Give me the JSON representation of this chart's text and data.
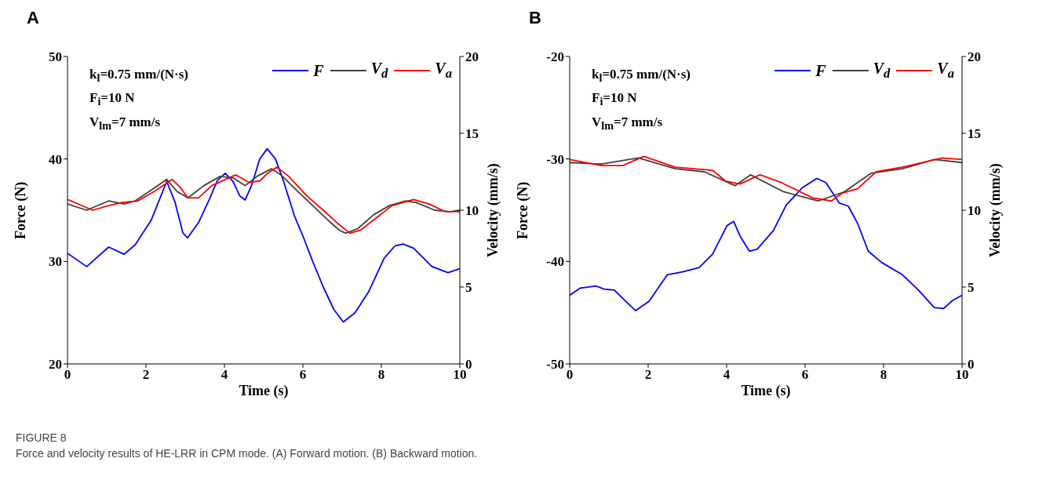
{
  "chart_data": [
    {
      "type": "line",
      "title": "A",
      "xlabel": "Time (s)",
      "ylabel": "Force (N)",
      "y2label": "Velocity (mm/s)",
      "xlim": [
        0,
        10
      ],
      "xticks": [
        0,
        2,
        4,
        6,
        8,
        10
      ],
      "ylim": [
        20,
        50
      ],
      "yticks": [
        20,
        30,
        40,
        50
      ],
      "y2lim": [
        0,
        20
      ],
      "y2ticks": [
        0,
        5,
        10,
        15,
        20
      ],
      "legend": "top right",
      "marker": "none",
      "line_style": "solid",
      "annotations": [
        "k$_{l}$=0.75 mm/(N·s)",
        "F$_{i}$=10 N",
        "V$_{lm}$=7 mm/s",
        "FIGURE 8",
        "Force and velocity results of HE-LRR in CPM mode. (A) Forward motion. (B) Backward motion."
      ],
      "series": [
        {
          "name": "F",
          "color": "#0000ff",
          "x": [
            0,
            0.49,
            1.05,
            1.44,
            1.72,
            2.13,
            2.53,
            2.74,
            2.94,
            3.06,
            3.34,
            3.61,
            3.82,
            4.02,
            4.22,
            4.39,
            4.53,
            4.7,
            4.9,
            5.09,
            5.3,
            5.51,
            5.78,
            6.05,
            6.25,
            6.52,
            6.79,
            7.03,
            7.33,
            7.67,
            8.07,
            8.34,
            8.55,
            8.82,
            9.29,
            9.7,
            10
          ],
          "values": [
            30.8,
            29.5,
            31.4,
            30.7,
            31.6,
            34,
            37.8,
            35.8,
            32.8,
            32.3,
            33.8,
            36,
            37.9,
            38.6,
            37.8,
            36.4,
            36,
            37.5,
            40,
            41,
            40,
            37.8,
            34.5,
            32,
            30,
            27.5,
            25.3,
            24.1,
            25,
            27,
            30.3,
            31.5,
            31.7,
            31.3,
            29.5,
            28.9,
            29.3
          ]
        },
        {
          "name": "V$_{d}$",
          "color": "#404040",
          "axis": "y2",
          "x": [
            0,
            0.49,
            1.05,
            1.45,
            1.72,
            2.13,
            2.53,
            2.8,
            3.07,
            3.48,
            3.89,
            4.22,
            4.53,
            4.83,
            5.2,
            5.44,
            5.84,
            6.25,
            6.66,
            6.93,
            7.09,
            7.4,
            7.8,
            8.21,
            8.61,
            8.88,
            9.36,
            9.76,
            10
          ],
          "values": [
            10.4,
            10,
            10.6,
            10.4,
            10.6,
            11.3,
            12,
            11.2,
            10.8,
            11.6,
            12.2,
            12.1,
            11.6,
            12.2,
            12.7,
            12.3,
            11.3,
            10.3,
            9.3,
            8.7,
            8.5,
            8.8,
            9.7,
            10.3,
            10.6,
            10.5,
            10,
            9.9,
            10
          ]
        },
        {
          "name": "V$_{a}$",
          "color": "#ff0000",
          "axis": "y2",
          "x": [
            0,
            0.64,
            1.05,
            1.39,
            1.79,
            2.2,
            2.67,
            2.87,
            3.07,
            3.34,
            3.68,
            4.29,
            4.63,
            4.9,
            5.1,
            5.34,
            5.64,
            6.11,
            6.52,
            6.86,
            7.2,
            7.47,
            7.87,
            8.28,
            8.82,
            9.22,
            9.63,
            10
          ],
          "values": [
            10.7,
            10,
            10.3,
            10.5,
            10.6,
            11.2,
            12,
            11.5,
            10.8,
            10.8,
            11.6,
            12.3,
            11.8,
            11.9,
            12.4,
            12.8,
            12.2,
            10.9,
            10,
            9.2,
            8.5,
            8.7,
            9.5,
            10.3,
            10.7,
            10.4,
            9.9,
            9.9
          ]
        }
      ]
    },
    {
      "type": "line",
      "title": "B",
      "xlabel": "Time (s)",
      "ylabel": "Force (N)",
      "y2label": "Velocity (mm/s)",
      "xlim": [
        0,
        10
      ],
      "xticks": [
        0,
        2,
        4,
        6,
        8,
        10
      ],
      "ylim": [
        -50,
        -20
      ],
      "yticks": [
        -50,
        -40,
        -30,
        -20
      ],
      "y2lim": [
        0,
        20
      ],
      "y2ticks": [
        0,
        5,
        10,
        15,
        20
      ],
      "legend": "top right",
      "marker": "none",
      "line_style": "solid",
      "annotations": [
        "k$_{l}$=0.75 mm/(N·s)",
        "F$_{i}$=10 N",
        "V$_{lm}$=7 mm/s"
      ],
      "series": [
        {
          "name": "F",
          "color": "#0000ff",
          "x": [
            0,
            0.27,
            0.67,
            0.88,
            1.14,
            1.35,
            1.68,
            2.02,
            2.49,
            2.9,
            3.3,
            3.64,
            4.01,
            4.18,
            4.34,
            4.58,
            4.78,
            5.19,
            5.52,
            5.93,
            6.3,
            6.53,
            6.87,
            7.1,
            7.34,
            7.61,
            7.95,
            8.48,
            8.89,
            9.29,
            9.53,
            9.76,
            10
          ],
          "values": [
            -43.3,
            -42.6,
            -42.4,
            -42.7,
            -42.8,
            -43.6,
            -44.8,
            -43.9,
            -41.3,
            -41,
            -40.6,
            -39.3,
            -36.5,
            -36.1,
            -37.5,
            -39,
            -38.8,
            -37,
            -34.5,
            -32.8,
            -31.9,
            -32.3,
            -34.3,
            -34.6,
            -36.3,
            -39,
            -40.1,
            -41.3,
            -42.8,
            -44.5,
            -44.6,
            -43.8,
            -43.3
          ]
        },
        {
          "name": "V$_{d}$",
          "color": "#404040",
          "axis": "y2",
          "x": [
            0,
            0.81,
            1.75,
            2.69,
            3.43,
            4.21,
            4.61,
            5.45,
            6.33,
            7,
            7.68,
            8.48,
            9.29,
            10
          ],
          "values": [
            13.1,
            13,
            13.4,
            12.7,
            12.5,
            11.6,
            12.3,
            11.2,
            10.6,
            11.2,
            12.4,
            12.7,
            13.3,
            13.1
          ]
        },
        {
          "name": "V$_{a}$",
          "color": "#ff0000",
          "axis": "y2",
          "x": [
            0,
            0.81,
            1.35,
            1.89,
            2.69,
            3.64,
            3.97,
            4.34,
            4.85,
            5.39,
            6.2,
            6.67,
            6.94,
            7.34,
            7.81,
            8.48,
            9.5,
            10
          ],
          "values": [
            13.3,
            12.9,
            12.9,
            13.5,
            12.8,
            12.6,
            11.9,
            11.7,
            12.3,
            11.8,
            10.8,
            10.6,
            11.1,
            11.4,
            12.5,
            12.8,
            13.4,
            13.3
          ]
        }
      ]
    }
  ]
}
